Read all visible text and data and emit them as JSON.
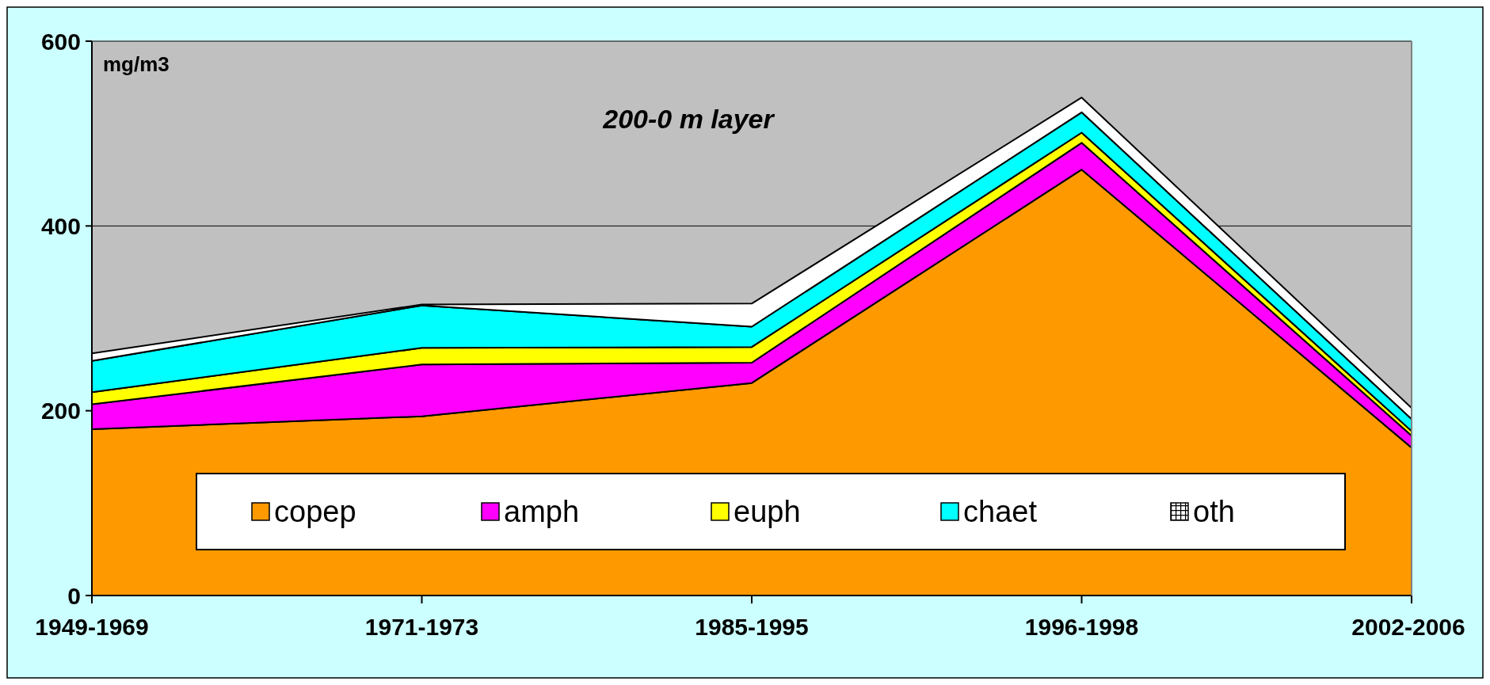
{
  "chart_data": {
    "type": "area",
    "title": "200-0 m layer",
    "ylabel": "mg/m3",
    "stacked": true,
    "categories": [
      "1949-1969",
      "1971-1973",
      "1985-1995",
      "1996-1998",
      "2002-2006"
    ],
    "series": [
      {
        "name": "copep",
        "color": "#ff9900",
        "values": [
          180,
          194,
          230,
          461,
          160
        ]
      },
      {
        "name": "amph",
        "color": "#ff00ff",
        "values": [
          27,
          56,
          22,
          29,
          13
        ]
      },
      {
        "name": "euph",
        "color": "#ffff00",
        "values": [
          13,
          18,
          17,
          11,
          5
        ]
      },
      {
        "name": "chaet",
        "color": "#00ffff",
        "values": [
          34,
          46,
          22,
          22,
          13
        ]
      },
      {
        "name": "oth",
        "color": "#ffffff",
        "values": [
          8,
          1,
          25,
          16,
          12
        ]
      }
    ],
    "ylim": [
      0,
      600
    ],
    "yticks": [
      0,
      200,
      400,
      600
    ],
    "grid": "y",
    "legend": "bottom"
  }
}
